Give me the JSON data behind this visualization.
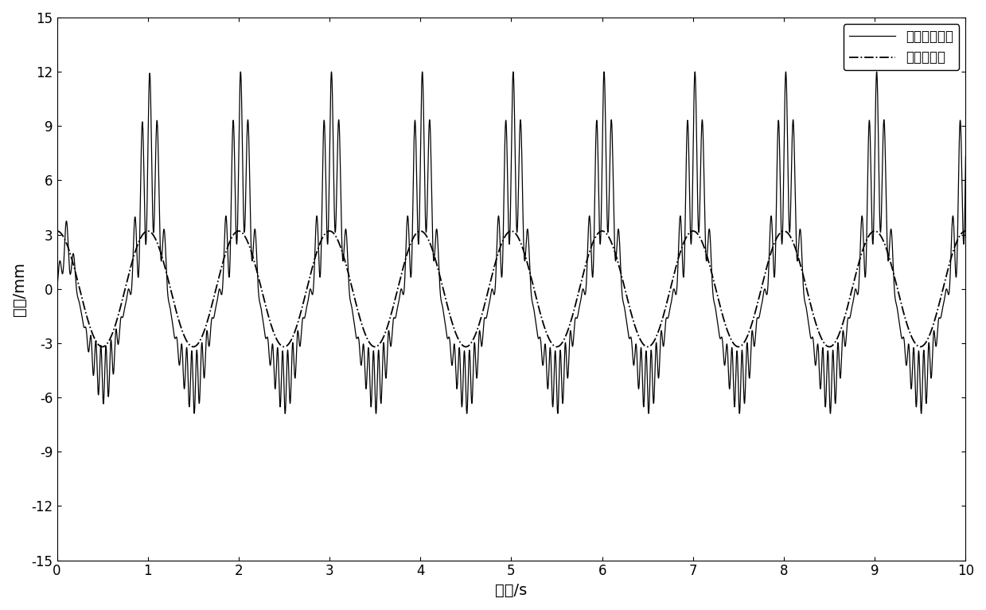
{
  "title": "",
  "xlabel": "时间/s",
  "ylabel": "位移/mm",
  "xlim": [
    0,
    10
  ],
  "ylim": [
    -15,
    15
  ],
  "xticks": [
    0,
    1,
    2,
    3,
    4,
    5,
    6,
    7,
    8,
    9,
    10
  ],
  "yticks": [
    -15,
    -12,
    -9,
    -6,
    -3,
    0,
    3,
    6,
    9,
    12,
    15
  ],
  "legend1": "复合式俧能器",
  "legend2": "传统俧能器",
  "bg_color": "#ffffff",
  "line_color": "#000000",
  "t_start": 0,
  "t_end": 10,
  "n_points": 10000,
  "trad_amp": 3.2,
  "trad_freq": 1.0,
  "trad_phase": 1.5707963,
  "comp_main_amp": 8.5,
  "comp_main_freq": 1.0,
  "comp_spike_amp": 6.5,
  "comp_spike_freq": 12.0,
  "comp_spike_decay": 8.0,
  "comp_ripple_freq": 18.0,
  "comp_ripple_amp": 2.5,
  "comp_neg_ripple_freq": 14.0,
  "comp_neg_ripple_amp": 2.0
}
